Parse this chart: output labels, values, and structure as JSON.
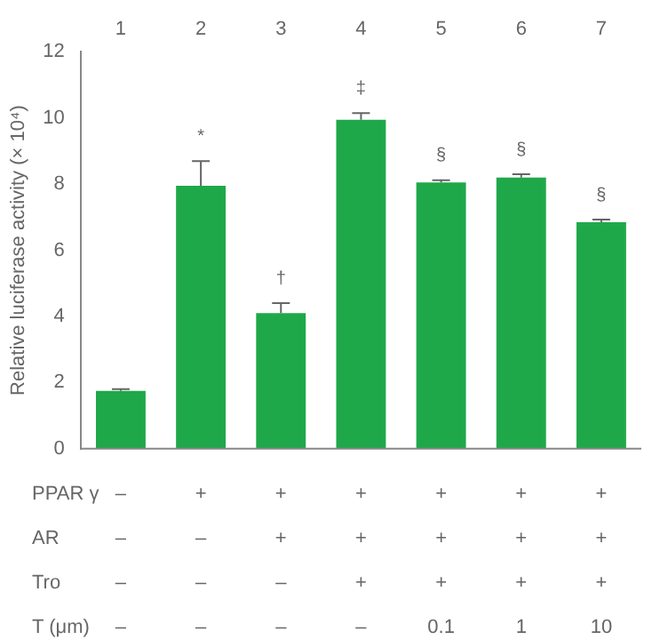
{
  "chart_data": {
    "type": "bar",
    "ylabel": "Relative luciferase activity (× 10⁴)",
    "categories": [
      "1",
      "2",
      "3",
      "4",
      "5",
      "6",
      "7"
    ],
    "values": [
      1.75,
      7.95,
      4.1,
      9.95,
      8.05,
      8.2,
      6.85
    ],
    "errors": [
      0.05,
      0.75,
      0.3,
      0.2,
      0.07,
      0.1,
      0.08
    ],
    "color": "#1fa84a",
    "ylim": [
      0,
      12
    ],
    "yticks": [
      0,
      2,
      4,
      6,
      8,
      10,
      12
    ],
    "grid": false,
    "legend": false,
    "annotations": [
      "*",
      "†",
      "‡",
      "§",
      "§",
      "§",
      "PPAR γ",
      "–",
      "+",
      "+",
      "+",
      "+",
      "+",
      "+",
      "AR",
      "–",
      "–",
      "+",
      "+",
      "+",
      "+",
      "+",
      "Tro",
      "–",
      "–",
      "–",
      "+",
      "+",
      "+",
      "+",
      "T (μm)",
      "–",
      "–",
      "–",
      "–",
      "0.1",
      "1",
      "10"
    ]
  }
}
